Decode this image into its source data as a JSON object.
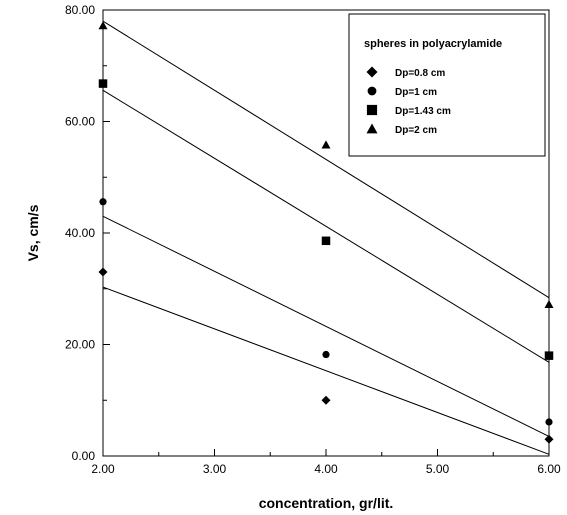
{
  "chart_data": {
    "type": "scatter",
    "title": "",
    "xlabel": "concentration, gr/lit.",
    "ylabel": "Vs, cm/s",
    "xlim": [
      2.0,
      6.0
    ],
    "ylim": [
      0.0,
      80.0
    ],
    "x_ticks": [
      2.0,
      3.0,
      4.0,
      5.0,
      6.0
    ],
    "x_tick_labels": [
      "2.00",
      "3.00",
      "4.00",
      "5.00",
      "6.00"
    ],
    "y_ticks": [
      0.0,
      20.0,
      40.0,
      60.0,
      80.0
    ],
    "y_tick_labels": [
      "0.00",
      "20.00",
      "40.00",
      "60.00",
      "80.00"
    ],
    "grid": false,
    "legend": {
      "title": "spheres in polyacrylamide",
      "placement": "top-right"
    },
    "series": [
      {
        "name": "Dp=0.8 cm",
        "marker": "diamond",
        "x": [
          2.0,
          4.0,
          6.0
        ],
        "y": [
          33.0,
          10.0,
          3.0
        ],
        "fit_line": [
          [
            2.0,
            30.3
          ],
          [
            6.0,
            0.3
          ]
        ]
      },
      {
        "name": "Dp=1 cm",
        "marker": "circle",
        "x": [
          2.0,
          4.0,
          6.0
        ],
        "y": [
          45.6,
          18.2,
          6.1
        ],
        "fit_line": [
          [
            2.0,
            43.0
          ],
          [
            6.0,
            3.5
          ]
        ]
      },
      {
        "name": "Dp=1.43 cm",
        "marker": "square",
        "x": [
          2.0,
          4.0,
          6.0
        ],
        "y": [
          66.8,
          38.6,
          18.0
        ],
        "fit_line": [
          [
            2.0,
            65.6
          ],
          [
            6.0,
            16.8
          ]
        ]
      },
      {
        "name": "Dp=2 cm",
        "marker": "triangle",
        "x": [
          2.0,
          4.0,
          6.0
        ],
        "y": [
          77.2,
          55.8,
          27.2
        ],
        "fit_line": [
          [
            2.0,
            78.0
          ],
          [
            6.0,
            28.4
          ]
        ]
      }
    ]
  }
}
